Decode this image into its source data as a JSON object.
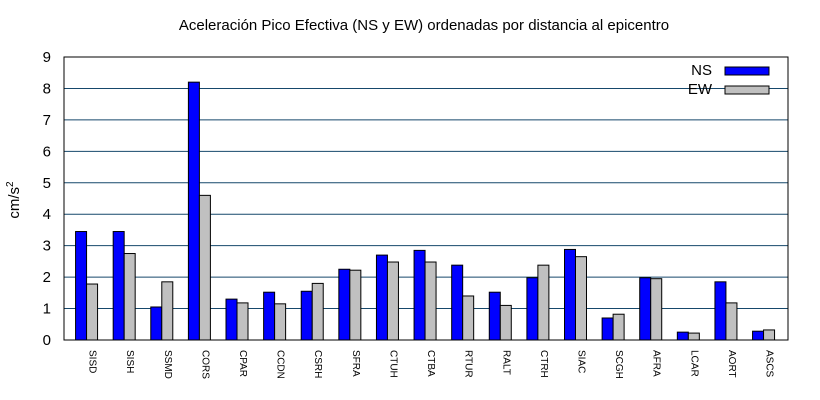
{
  "chart_data": {
    "type": "bar",
    "title": "Aceleración Pico Efectiva (NS y EW) ordenadas por distancia al epicentro",
    "xlabel": "",
    "ylabel": "cm/s",
    "ylabel_superscript": "2",
    "ylim": [
      0,
      9
    ],
    "yticks": [
      0,
      1,
      2,
      3,
      4,
      5,
      6,
      7,
      8,
      9
    ],
    "grid": "horizontal",
    "legend_position": "top-right",
    "categories": [
      "SISD",
      "SISH",
      "SSMD",
      "CORS",
      "CPAR",
      "CCDN",
      "CSRH",
      "SFRA",
      "CTUH",
      "CTBA",
      "RTUR",
      "RALT",
      "CTRH",
      "SIAC",
      "SCGH",
      "AFRA",
      "LCAR",
      "AORT",
      "ASCS"
    ],
    "series": [
      {
        "name": "NS",
        "color": "#0000ff",
        "values": [
          3.45,
          3.45,
          1.05,
          8.2,
          1.3,
          1.52,
          1.55,
          2.25,
          2.7,
          2.85,
          2.38,
          1.52,
          1.98,
          2.88,
          0.7,
          1.98,
          0.25,
          1.85,
          0.28
        ]
      },
      {
        "name": "EW",
        "color": "#c0c0c0",
        "values": [
          1.78,
          2.75,
          1.85,
          4.6,
          1.18,
          1.15,
          1.8,
          2.22,
          2.48,
          2.48,
          1.4,
          1.1,
          2.38,
          2.65,
          0.82,
          1.95,
          0.22,
          1.18,
          0.32
        ]
      }
    ]
  }
}
